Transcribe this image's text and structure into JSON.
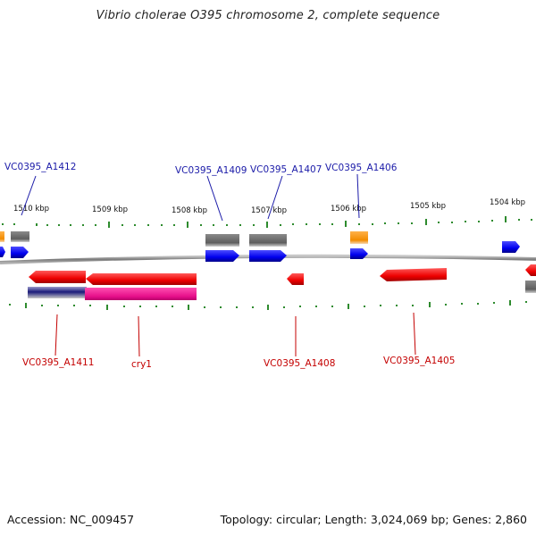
{
  "header": {
    "title": "Vibrio cholerae O395 chromosome 2, complete sequence"
  },
  "footer": {
    "accession": "Accession: NC_009457",
    "summary": "Topology: circular; Length: 3,024,069 bp; Genes: 2,860"
  },
  "colors": {
    "forward_label": "#1a1aa8",
    "reverse_label": "#c40000",
    "tick": "#1f7a1f",
    "backbone": "#8c8c8c"
  },
  "scale": {
    "ticks": [
      "1510 kbp",
      "1509 kbp",
      "1508 kbp",
      "1507 kbp",
      "1506 kbp",
      "1505 kbp",
      "1504 kbp"
    ]
  },
  "forward_labels": [
    "VC0395_A1412",
    "VC0395_A1409",
    "VC0395_A1407",
    "VC0395_A1406"
  ],
  "reverse_labels": [
    "VC0395_A1411",
    "cry1",
    "VC0395_A1408",
    "VC0395_A1405"
  ]
}
